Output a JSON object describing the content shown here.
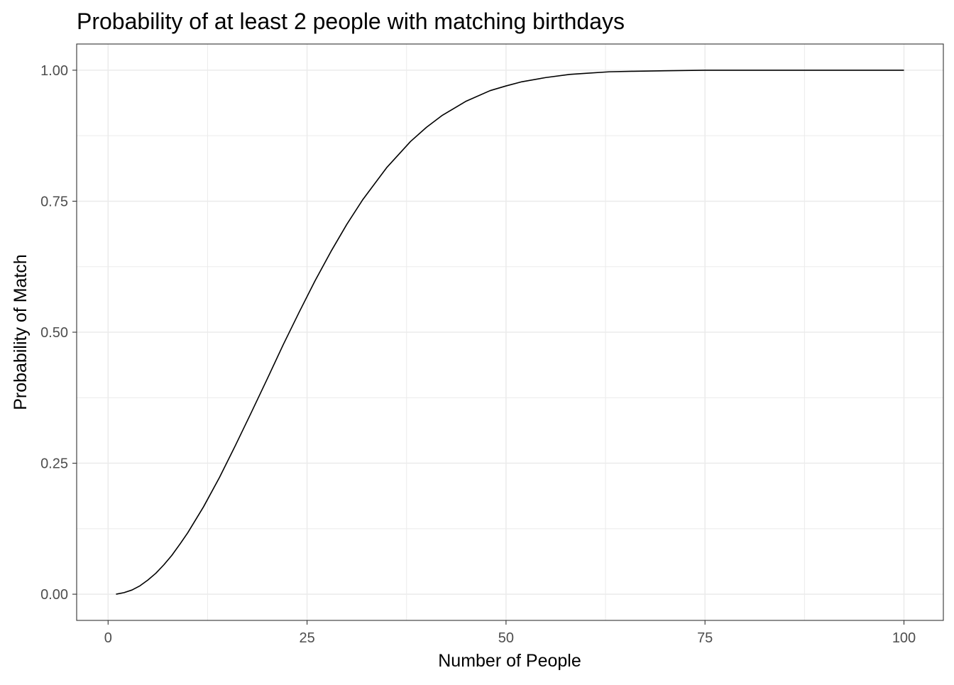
{
  "chart_data": {
    "type": "line",
    "title": "Probability of at least 2 people with matching birthdays",
    "xlabel": "Number of People",
    "ylabel": "Probability of Match",
    "xlim": [
      -3.95,
      104.95
    ],
    "ylim": [
      -0.05,
      1.05
    ],
    "x_ticks": [
      0,
      25,
      50,
      75,
      100
    ],
    "x_tick_labels": [
      "0",
      "25",
      "50",
      "75",
      "100"
    ],
    "y_ticks": [
      0,
      0.25,
      0.5,
      0.75,
      1
    ],
    "y_tick_labels": [
      "0.00",
      "0.25",
      "0.50",
      "0.75",
      "1.00"
    ],
    "grid": true,
    "legend": "none",
    "line_color": "#000000",
    "series": [
      {
        "x": [
          1,
          2,
          3,
          4,
          5,
          6,
          7,
          8,
          9,
          10,
          12,
          14,
          16,
          18,
          20,
          22,
          23,
          24,
          26,
          28,
          30,
          32,
          35,
          38,
          40,
          42,
          45,
          48,
          50,
          52,
          55,
          58,
          60,
          63,
          66,
          70,
          75,
          80,
          85,
          90,
          95,
          100
        ],
        "values": [
          0,
          0.003,
          0.008,
          0.016,
          0.027,
          0.04,
          0.056,
          0.074,
          0.095,
          0.117,
          0.167,
          0.223,
          0.284,
          0.347,
          0.411,
          0.476,
          0.507,
          0.538,
          0.598,
          0.654,
          0.706,
          0.753,
          0.814,
          0.864,
          0.891,
          0.914,
          0.941,
          0.961,
          0.97,
          0.978,
          0.986,
          0.992,
          0.994,
          0.997,
          0.998,
          0.999,
          1.0,
          1.0,
          1.0,
          1.0,
          1.0,
          1.0
        ]
      }
    ]
  }
}
